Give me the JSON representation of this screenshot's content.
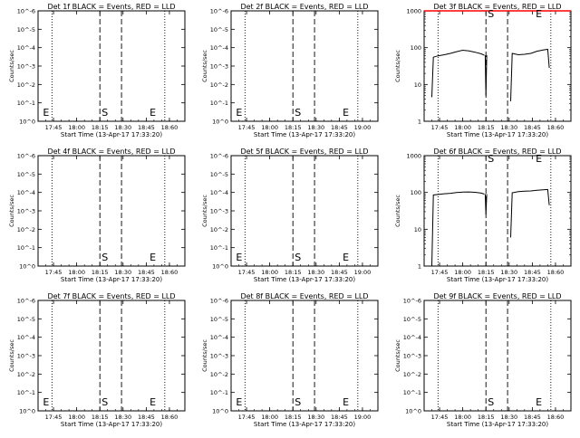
{
  "chart_data": [
    {
      "type": "line",
      "title": "Det 1f BLACK = Events, RED = LLD",
      "xlabel": "Start Time (13-Apr-17 17:33:20)",
      "ylabel": "Counts/sec",
      "xlim": [
        "17:35",
        "19:10"
      ],
      "yscale": "log",
      "x_ticks": [
        "17:45",
        "18:00",
        "18:15",
        "18:30",
        "18:45",
        "18:60"
      ],
      "y_ticks": [
        "10^0",
        "10^-1",
        "10^-2",
        "10^-3",
        "10^-4",
        "10^-5",
        "10^-6"
      ],
      "markers": [
        {
          "label": "E",
          "x": "17:37"
        },
        {
          "label": "S",
          "x": "18:15"
        },
        {
          "label": "E",
          "x": "18:46"
        }
      ],
      "dotted_lines": [
        "17:44",
        "18:57"
      ],
      "dashed_lines": [
        "18:15",
        "18:29"
      ],
      "series": []
    },
    {
      "type": "line",
      "title": "Det 2f BLACK = Events, RED = LLD",
      "xlabel": "Start Time (13-Apr-17 17:33:20)",
      "ylabel": "Counts/sec",
      "xlim": [
        "17:35",
        "19:10"
      ],
      "yscale": "log",
      "x_ticks": [
        "17:45",
        "18:00",
        "18:15",
        "18:30",
        "18:45",
        "19:00"
      ],
      "y_ticks": [
        "10^0",
        "10^-1",
        "10^-2",
        "10^-3",
        "10^-4",
        "10^-5",
        "10^-6"
      ],
      "markers": [
        {
          "label": "E",
          "x": "17:37"
        },
        {
          "label": "S",
          "x": "18:15"
        },
        {
          "label": "E",
          "x": "18:46"
        }
      ],
      "dotted_lines": [
        "17:44",
        "18:57"
      ],
      "dashed_lines": [
        "18:15",
        "18:29"
      ],
      "series": []
    },
    {
      "type": "line",
      "title": "Det 3f BLACK = Events, RED = LLD",
      "xlabel": "Start Time (13-Apr-17 17:33:20)",
      "ylabel": "Counts/sec",
      "xlim": [
        "17:35",
        "19:10"
      ],
      "yscale": "log",
      "ylim": [
        1,
        1000
      ],
      "x_ticks": [
        "17:45",
        "18:00",
        "18:15",
        "18:30",
        "18:45",
        "18:60"
      ],
      "y_ticks": [
        "1000",
        "100",
        "10",
        "1"
      ],
      "markers": [
        {
          "label": "S",
          "x": "18:15"
        },
        {
          "label": "E",
          "x": "18:46"
        }
      ],
      "dotted_lines": [
        "17:44",
        "18:57"
      ],
      "dashed_lines": [
        "18:15",
        "18:29"
      ],
      "series": [
        {
          "color": "#000000",
          "segments": [
            {
              "x": [
                "17:40",
                "17:41",
                "17:44",
                "17:48",
                "17:52",
                "17:56",
                "18:00",
                "18:04",
                "18:08",
                "18:12",
                "18:14"
              ],
              "y": [
                4.5,
                55,
                60,
                64,
                70,
                78,
                85,
                82,
                75,
                68,
                62
              ]
            },
            {
              "x": [
                "18:14.5",
                "18:15",
                "18:15.5"
              ],
              "y": [
                62,
                5,
                62
              ]
            },
            {
              "x": [
                "18:31",
                "18:32",
                "18:36",
                "18:40",
                "18:44",
                "18:48",
                "18:52",
                "18:55",
                "18:56"
              ],
              "y": [
                3.5,
                70,
                64,
                66,
                70,
                80,
                86,
                90,
                28
              ]
            }
          ]
        },
        {
          "color": "#ff0000",
          "segments": [
            {
              "x": [
                "17:35",
                "19:10"
              ],
              "y": [
                1000,
                1000
              ]
            }
          ]
        }
      ]
    },
    {
      "type": "line",
      "title": "Det 4f BLACK = Events, RED = LLD",
      "xlabel": "Start Time (13-Apr-17 17:33:20)",
      "ylabel": "Counts/sec",
      "xlim": [
        "17:35",
        "19:10"
      ],
      "yscale": "log",
      "x_ticks": [
        "17:45",
        "18:00",
        "18:15",
        "18:30",
        "18:45",
        "18:60"
      ],
      "y_ticks": [
        "10^0",
        "10^-1",
        "10^-2",
        "10^-3",
        "10^-4",
        "10^-5",
        "10^-6"
      ],
      "markers": [
        {
          "label": "S",
          "x": "18:15"
        },
        {
          "label": "E",
          "x": "18:46"
        }
      ],
      "dotted_lines": [
        "17:44",
        "18:57"
      ],
      "dashed_lines": [
        "18:15",
        "18:29"
      ],
      "series": []
    },
    {
      "type": "line",
      "title": "Det 5f BLACK = Events, RED = LLD",
      "xlabel": "Start Time (13-Apr-17 17:33:20)",
      "ylabel": "Counts/sec",
      "xlim": [
        "17:35",
        "19:10"
      ],
      "yscale": "log",
      "x_ticks": [
        "17:45",
        "18:00",
        "18:15",
        "18:30",
        "18:45",
        "19:00"
      ],
      "y_ticks": [
        "10^0",
        "10^-1",
        "10^-2",
        "10^-3",
        "10^-4",
        "10^-5",
        "10^-6"
      ],
      "markers": [
        {
          "label": "E",
          "x": "17:37"
        },
        {
          "label": "S",
          "x": "18:15"
        },
        {
          "label": "E",
          "x": "18:46"
        }
      ],
      "dotted_lines": [
        "17:44",
        "18:57"
      ],
      "dashed_lines": [
        "18:15",
        "18:29"
      ],
      "series": []
    },
    {
      "type": "line",
      "title": "Det 6f BLACK = Events, RED = LLD",
      "xlabel": "Start Time (13-Apr-17 17:33:20)",
      "ylabel": "Counts/sec",
      "xlim": [
        "17:35",
        "19:10"
      ],
      "yscale": "log",
      "ylim": [
        1,
        1000
      ],
      "x_ticks": [
        "17:45",
        "18:00",
        "18:15",
        "18:30",
        "18:45",
        "18:60"
      ],
      "y_ticks": [
        "1000",
        "100",
        "10",
        "1"
      ],
      "markers": [
        {
          "label": "S",
          "x": "18:15"
        },
        {
          "label": "E",
          "x": "18:46"
        }
      ],
      "dotted_lines": [
        "17:44",
        "18:57"
      ],
      "dashed_lines": [
        "18:15",
        "18:29"
      ],
      "series": [
        {
          "color": "#000000",
          "segments": [
            {
              "x": [
                "17:40",
                "17:41",
                "17:44",
                "17:48",
                "17:52",
                "17:56",
                "18:00",
                "18:04",
                "18:08",
                "18:12",
                "18:14"
              ],
              "y": [
                1,
                85,
                88,
                92,
                95,
                100,
                102,
                103,
                101,
                96,
                90
              ]
            },
            {
              "x": [
                "18:14.5",
                "18:15",
                "18:15.5"
              ],
              "y": [
                90,
                25,
                90
              ]
            },
            {
              "x": [
                "18:31",
                "18:32",
                "18:36",
                "18:40",
                "18:44",
                "18:48",
                "18:52",
                "18:55",
                "18:56"
              ],
              "y": [
                6,
                98,
                105,
                108,
                110,
                115,
                118,
                120,
                45
              ]
            }
          ]
        }
      ]
    },
    {
      "type": "line",
      "title": "Det 7f BLACK = Events, RED = LLD",
      "xlabel": "Start Time (13-Apr-17 17:33:20)",
      "ylabel": "Counts/sec",
      "xlim": [
        "17:35",
        "19:10"
      ],
      "yscale": "log",
      "x_ticks": [
        "17:45",
        "18:00",
        "18:15",
        "18:30",
        "18:45",
        "18:60"
      ],
      "y_ticks": [
        "10^0",
        "10^-1",
        "10^-2",
        "10^-3",
        "10^-4",
        "10^-5",
        "10^-6"
      ],
      "markers": [
        {
          "label": "E",
          "x": "17:37"
        },
        {
          "label": "S",
          "x": "18:15"
        },
        {
          "label": "E",
          "x": "18:46"
        }
      ],
      "dotted_lines": [
        "17:44",
        "18:57"
      ],
      "dashed_lines": [
        "18:15",
        "18:29"
      ],
      "series": []
    },
    {
      "type": "line",
      "title": "Det 8f BLACK = Events, RED = LLD",
      "xlabel": "Start Time (13-Apr-17 17:33:20)",
      "ylabel": "Counts/sec",
      "xlim": [
        "17:35",
        "19:10"
      ],
      "yscale": "log",
      "x_ticks": [
        "17:45",
        "18:00",
        "18:15",
        "18:30",
        "18:45",
        "19:00"
      ],
      "y_ticks": [
        "10^0",
        "10^-1",
        "10^-2",
        "10^-3",
        "10^-4",
        "10^-5",
        "10^-6"
      ],
      "markers": [
        {
          "label": "E",
          "x": "17:37"
        },
        {
          "label": "S",
          "x": "18:15"
        },
        {
          "label": "E",
          "x": "18:46"
        }
      ],
      "dotted_lines": [
        "17:44",
        "18:57"
      ],
      "dashed_lines": [
        "18:15",
        "18:29"
      ],
      "series": []
    },
    {
      "type": "line",
      "title": "Det 9f BLACK = Events, RED = LLD",
      "xlabel": "Start Time (13-Apr-17 17:33:20)",
      "ylabel": "Counts/sec",
      "xlim": [
        "17:35",
        "19:10"
      ],
      "yscale": "log",
      "x_ticks": [
        "17:45",
        "18:00",
        "18:15",
        "18:30",
        "18:45",
        "18:60"
      ],
      "y_ticks": [
        "10^0",
        "10^-1",
        "10^-2",
        "10^-3",
        "10^-4",
        "10^-5",
        "10^-6"
      ],
      "markers": [
        {
          "label": "S",
          "x": "18:15"
        },
        {
          "label": "E",
          "x": "18:46"
        }
      ],
      "dotted_lines": [
        "17:44",
        "18:57"
      ],
      "dashed_lines": [
        "18:15",
        "18:29"
      ],
      "series": []
    }
  ]
}
